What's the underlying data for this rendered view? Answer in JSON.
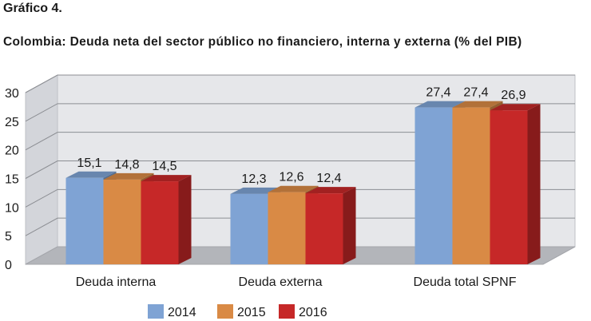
{
  "figure_label": "Gráfico 4.",
  "chart_data": {
    "type": "bar",
    "title": "Colombia: Deuda neta del sector público no financiero, interna y externa (% del PIB)",
    "xlabel": "",
    "ylabel": "",
    "ylim": [
      0,
      30
    ],
    "yticks": [
      "0",
      "5",
      "10",
      "15",
      "20",
      "25",
      "30"
    ],
    "grid": true,
    "legend_position": "bottom",
    "three_d": true,
    "categories": [
      "Deuda interna",
      "Deuda externa",
      "Deuda total SPNF"
    ],
    "series": [
      {
        "name": "2014",
        "color": "#7fa3d4",
        "values": [
          15.1,
          12.3,
          27.4
        ],
        "labels": [
          "15,1",
          "12,3",
          "27,4"
        ]
      },
      {
        "name": "2015",
        "color": "#d98a45",
        "values": [
          14.8,
          12.6,
          27.4
        ],
        "labels": [
          "14,8",
          "12,6",
          "27,4"
        ]
      },
      {
        "name": "2016",
        "color": "#c62828",
        "values": [
          14.5,
          12.4,
          26.9
        ],
        "labels": [
          "14,5",
          "12,4",
          "26,9"
        ]
      }
    ]
  }
}
